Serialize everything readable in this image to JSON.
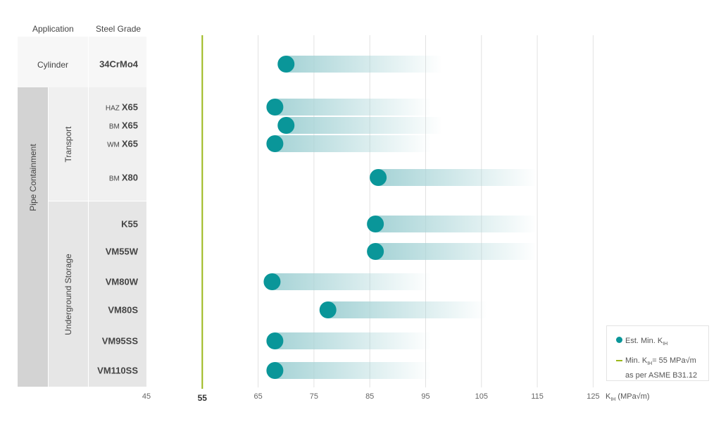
{
  "table": {
    "header_application": "Application",
    "header_grade": "Steel Grade",
    "cylinder": "Cylinder",
    "pipe_containment": "Pipe Containment",
    "transport": "Transport",
    "underground": "Underground Storage"
  },
  "chart_data": {
    "type": "range-dot",
    "xlabel": "K_IH (MPa√m)",
    "xlabel_main": "K",
    "xlabel_sub": "IH",
    "xlabel_unit": "(MPa√m)",
    "xlim": [
      45,
      125
    ],
    "xticks": [
      "45",
      "55",
      "65",
      "75",
      "85",
      "95",
      "105",
      "115",
      "125"
    ],
    "threshold": 55,
    "threshold_label": "55",
    "rows": [
      {
        "prefix": "",
        "grade": "34CrMo4",
        "value": 70,
        "range_end": 98
      },
      {
        "prefix": "HAZ",
        "grade": "X65",
        "value": 68,
        "range_end": 96
      },
      {
        "prefix": "BM",
        "grade": "X65",
        "value": 70,
        "range_end": 98
      },
      {
        "prefix": "WM",
        "grade": "X65",
        "value": 68,
        "range_end": 96
      },
      {
        "prefix": "BM",
        "grade": "X80",
        "value": 86.5,
        "range_end": 115
      },
      {
        "prefix": "",
        "grade": "K55",
        "value": 86,
        "range_end": 115
      },
      {
        "prefix": "",
        "grade": "VM55W",
        "value": 86,
        "range_end": 115
      },
      {
        "prefix": "",
        "grade": "VM80W",
        "value": 67.5,
        "range_end": 96
      },
      {
        "prefix": "",
        "grade": "VM80S",
        "value": 77.5,
        "range_end": 106
      },
      {
        "prefix": "",
        "grade": "VM95SS",
        "value": 68,
        "range_end": 96
      },
      {
        "prefix": "",
        "grade": "VM110SS",
        "value": 68,
        "range_end": 96
      }
    ],
    "legend": {
      "dot_label": "Est. Min. K",
      "dot_sub": "IH",
      "line_label_pre": "Min. K",
      "line_sub": "IH",
      "line_label_post": "= 55 MPa√m",
      "line_label_2": "as per ASME B31.12"
    },
    "colors": {
      "dot": "#0a9699",
      "bar": "#a6d3d6",
      "threshold": "#9bb81a",
      "grid": "#e2e2e2"
    }
  }
}
